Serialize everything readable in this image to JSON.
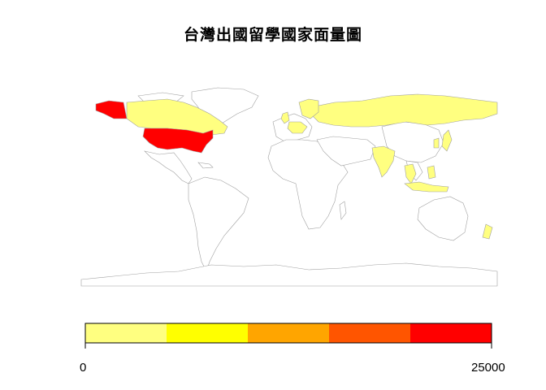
{
  "title": "台灣出國留學國家面量圖",
  "colors": {
    "no_data": "#ffffff",
    "border": "#a0a0a0",
    "usa": "#ff0000",
    "other": "#ffff80"
  },
  "legend": {
    "min_label": "0",
    "max_label": "25000",
    "bins": [
      "#ffff80",
      "#ffff00",
      "#ffa500",
      "#ff5500",
      "#ff0000"
    ]
  },
  "regions": [
    {
      "name": "United States",
      "level": 5
    },
    {
      "name": "Alaska (United States)",
      "level": 5
    },
    {
      "name": "Canada",
      "level": 1
    },
    {
      "name": "Russia",
      "level": 1
    },
    {
      "name": "United Kingdom",
      "level": 1
    },
    {
      "name": "Germany",
      "level": 1
    },
    {
      "name": "France",
      "level": 1
    },
    {
      "name": "Netherlands",
      "level": 1
    },
    {
      "name": "Sweden",
      "level": 1
    },
    {
      "name": "Finland",
      "level": 1
    },
    {
      "name": "India",
      "level": 1
    },
    {
      "name": "Japan",
      "level": 1
    },
    {
      "name": "Korea",
      "level": 1
    },
    {
      "name": "Thailand",
      "level": 1
    },
    {
      "name": "Malaysia",
      "level": 1
    },
    {
      "name": "Philippines",
      "level": 1
    },
    {
      "name": "Indonesia",
      "level": 1
    },
    {
      "name": "New Zealand",
      "level": 1
    }
  ]
}
